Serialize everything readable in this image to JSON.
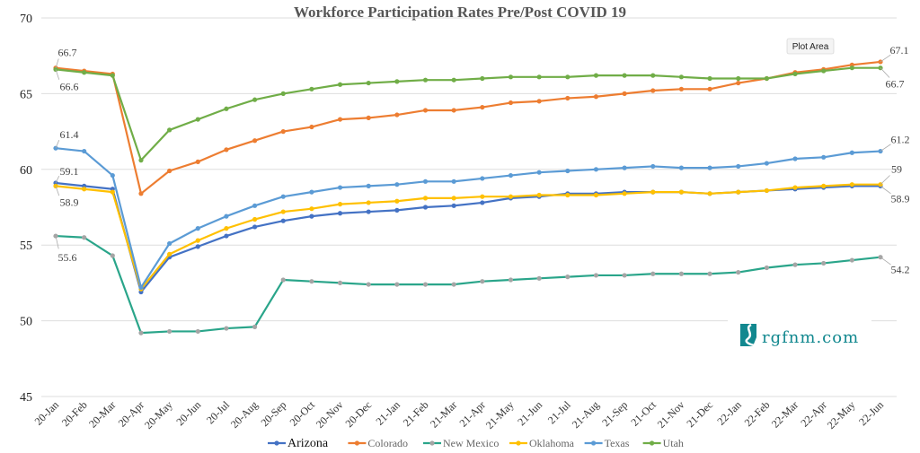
{
  "chart_data": {
    "type": "line",
    "title": "Workforce Participation Rates Pre/Post COVID 19",
    "xlabel": "",
    "ylabel": "",
    "ylim": [
      45,
      70
    ],
    "yticks": [
      "45",
      "50",
      "55",
      "60",
      "65",
      "70"
    ],
    "grid": true,
    "legend_position": "bottom",
    "categories": [
      "20-Jan",
      "20-Feb",
      "20-Mar",
      "20-Apr",
      "20-May",
      "20-Jun",
      "20-Jul",
      "20-Aug",
      "20-Sep",
      "20-Oct",
      "20-Nov",
      "20-Dec",
      "21-Jan",
      "21-Feb",
      "21-Mar",
      "21-Apr",
      "21-May",
      "21-Jun",
      "21-Jul",
      "21-Aug",
      "21-Sep",
      "21-Oct",
      "21-Nov",
      "21-Dec",
      "22-Jan",
      "22-Feb",
      "22-Mar",
      "22-Apr",
      "22-May",
      "22-Jun"
    ],
    "series": [
      {
        "name": "Arizona",
        "color": "#4472c4",
        "marker": "#4472c4",
        "values": [
          59.1,
          58.9,
          58.7,
          51.9,
          54.2,
          54.9,
          55.6,
          56.2,
          56.6,
          56.9,
          57.1,
          57.2,
          57.3,
          57.5,
          57.6,
          57.8,
          58.1,
          58.2,
          58.4,
          58.4,
          58.5,
          58.5,
          58.5,
          58.4,
          58.5,
          58.6,
          58.7,
          58.8,
          58.9,
          58.9
        ],
        "labels": {
          "first": "59.1",
          "last": "58.9"
        }
      },
      {
        "name": "Colorado",
        "color": "#ed7d31",
        "marker": "#ed7d31",
        "values": [
          66.7,
          66.5,
          66.3,
          58.4,
          59.9,
          60.5,
          61.3,
          61.9,
          62.5,
          62.8,
          63.3,
          63.4,
          63.6,
          63.9,
          63.9,
          64.1,
          64.4,
          64.5,
          64.7,
          64.8,
          65.0,
          65.2,
          65.3,
          65.3,
          65.7,
          66.0,
          66.4,
          66.6,
          66.9,
          67.1
        ],
        "labels": {
          "first": "66.7",
          "last": "67.1"
        }
      },
      {
        "name": "New Mexico",
        "color": "#2aa58a",
        "marker": "#a5a5a5",
        "values": [
          55.6,
          55.5,
          54.3,
          49.2,
          49.3,
          49.3,
          49.5,
          49.6,
          52.7,
          52.6,
          52.5,
          52.4,
          52.4,
          52.4,
          52.4,
          52.6,
          52.7,
          52.8,
          52.9,
          53.0,
          53.0,
          53.1,
          53.1,
          53.1,
          53.2,
          53.5,
          53.7,
          53.8,
          54.0,
          54.2
        ],
        "labels": {
          "first": "55.6",
          "last": "54.2"
        }
      },
      {
        "name": "Oklahoma",
        "color": "#ffc000",
        "marker": "#ffc000",
        "values": [
          58.9,
          58.7,
          58.5,
          52.1,
          54.4,
          55.3,
          56.1,
          56.7,
          57.2,
          57.4,
          57.7,
          57.8,
          57.9,
          58.1,
          58.1,
          58.2,
          58.2,
          58.3,
          58.3,
          58.3,
          58.4,
          58.5,
          58.5,
          58.4,
          58.5,
          58.6,
          58.8,
          58.9,
          59.0,
          59.0
        ],
        "labels": {
          "first": "58.9",
          "last": "59"
        }
      },
      {
        "name": "Texas",
        "color": "#5b9bd5",
        "marker": "#5b9bd5",
        "values": [
          61.4,
          61.2,
          59.6,
          52.2,
          55.1,
          56.1,
          56.9,
          57.6,
          58.2,
          58.5,
          58.8,
          58.9,
          59.0,
          59.2,
          59.2,
          59.4,
          59.6,
          59.8,
          59.9,
          60.0,
          60.1,
          60.2,
          60.1,
          60.1,
          60.2,
          60.4,
          60.7,
          60.8,
          61.1,
          61.2
        ],
        "labels": {
          "first": "61.4",
          "last": "61.2"
        }
      },
      {
        "name": "Utah",
        "color": "#70ad47",
        "marker": "#70ad47",
        "values": [
          66.6,
          66.4,
          66.2,
          60.6,
          62.6,
          63.3,
          64.0,
          64.6,
          65.0,
          65.3,
          65.6,
          65.7,
          65.8,
          65.9,
          65.9,
          66.0,
          66.1,
          66.1,
          66.1,
          66.2,
          66.2,
          66.2,
          66.1,
          66.0,
          66.0,
          66.0,
          66.3,
          66.5,
          66.7,
          66.7
        ],
        "labels": {
          "first": "66.6",
          "last": "66.7"
        }
      }
    ]
  },
  "tooltip": {
    "text": "Plot Area"
  },
  "watermark": {
    "text": "rgfnm.com",
    "color": "#12888f"
  }
}
